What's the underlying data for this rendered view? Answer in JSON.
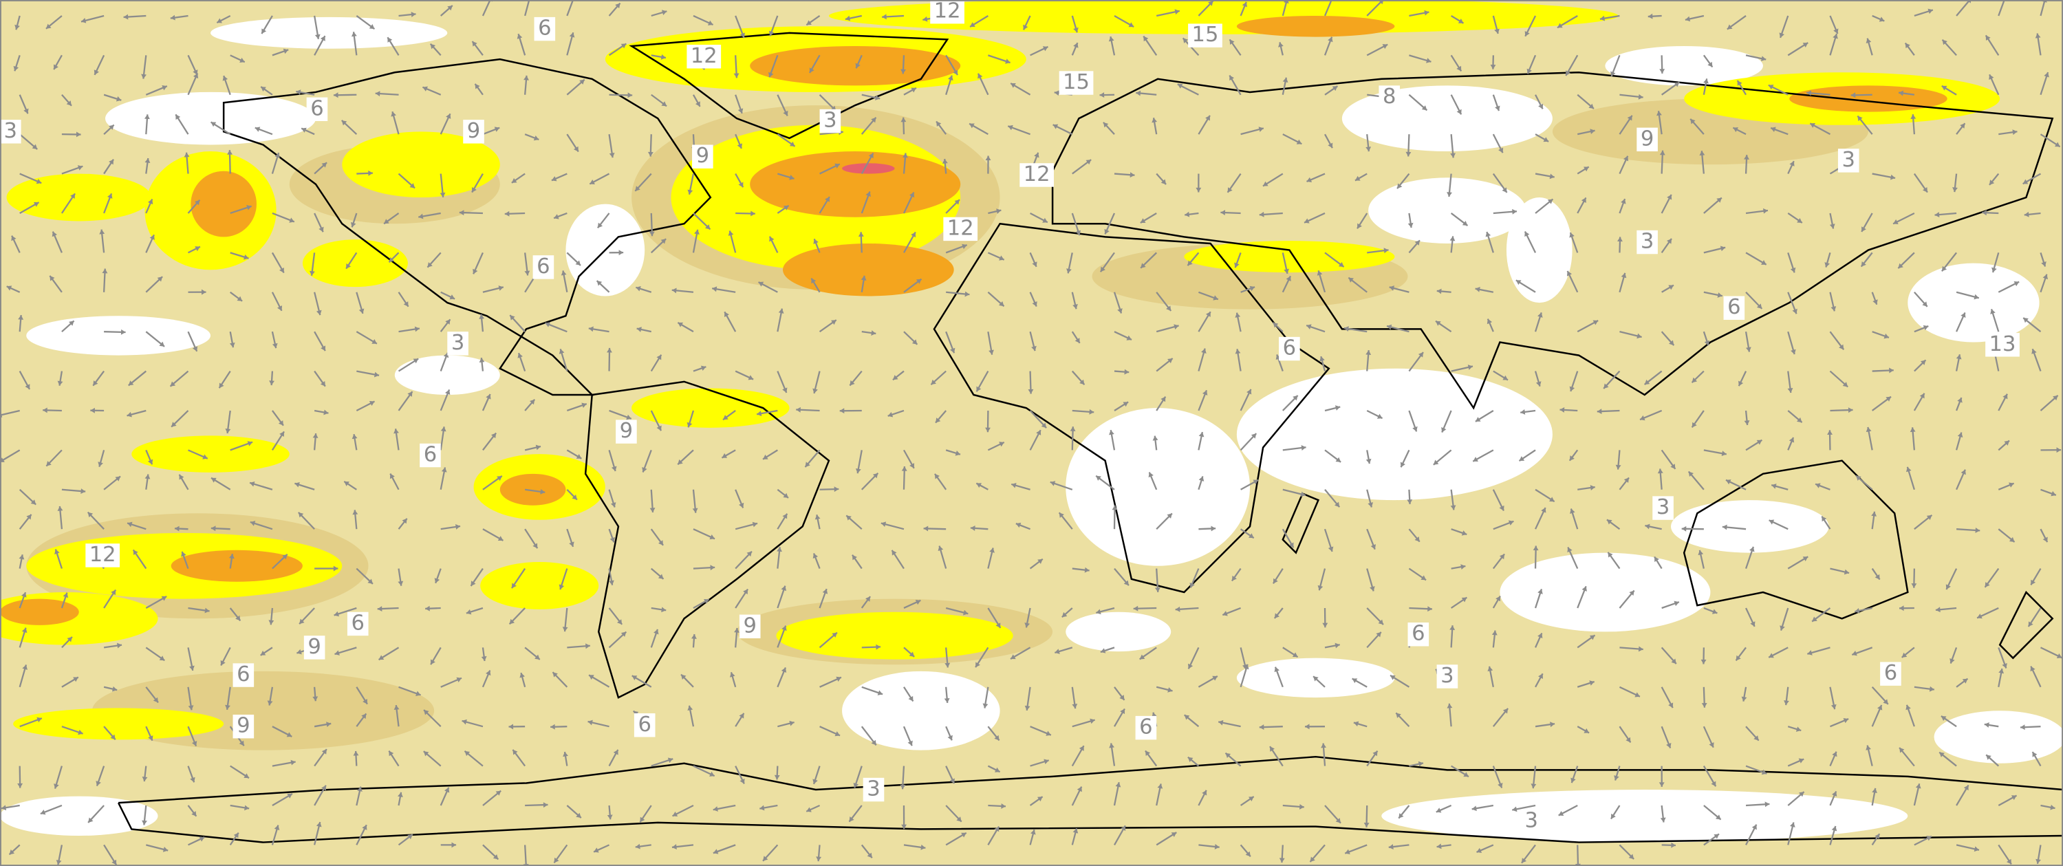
{
  "contour_labels": [
    "6",
    "12",
    "12",
    "15",
    "15",
    "6",
    "3",
    "9",
    "3",
    "8",
    "9",
    "9",
    "12",
    "3",
    "12",
    "6",
    "3",
    "6",
    "3",
    "6",
    "13",
    "9",
    "6",
    "3",
    "12",
    "6",
    "9",
    "9",
    "6",
    "3",
    "6",
    "6",
    "9",
    "6",
    "6",
    "3",
    "3"
  ]
}
